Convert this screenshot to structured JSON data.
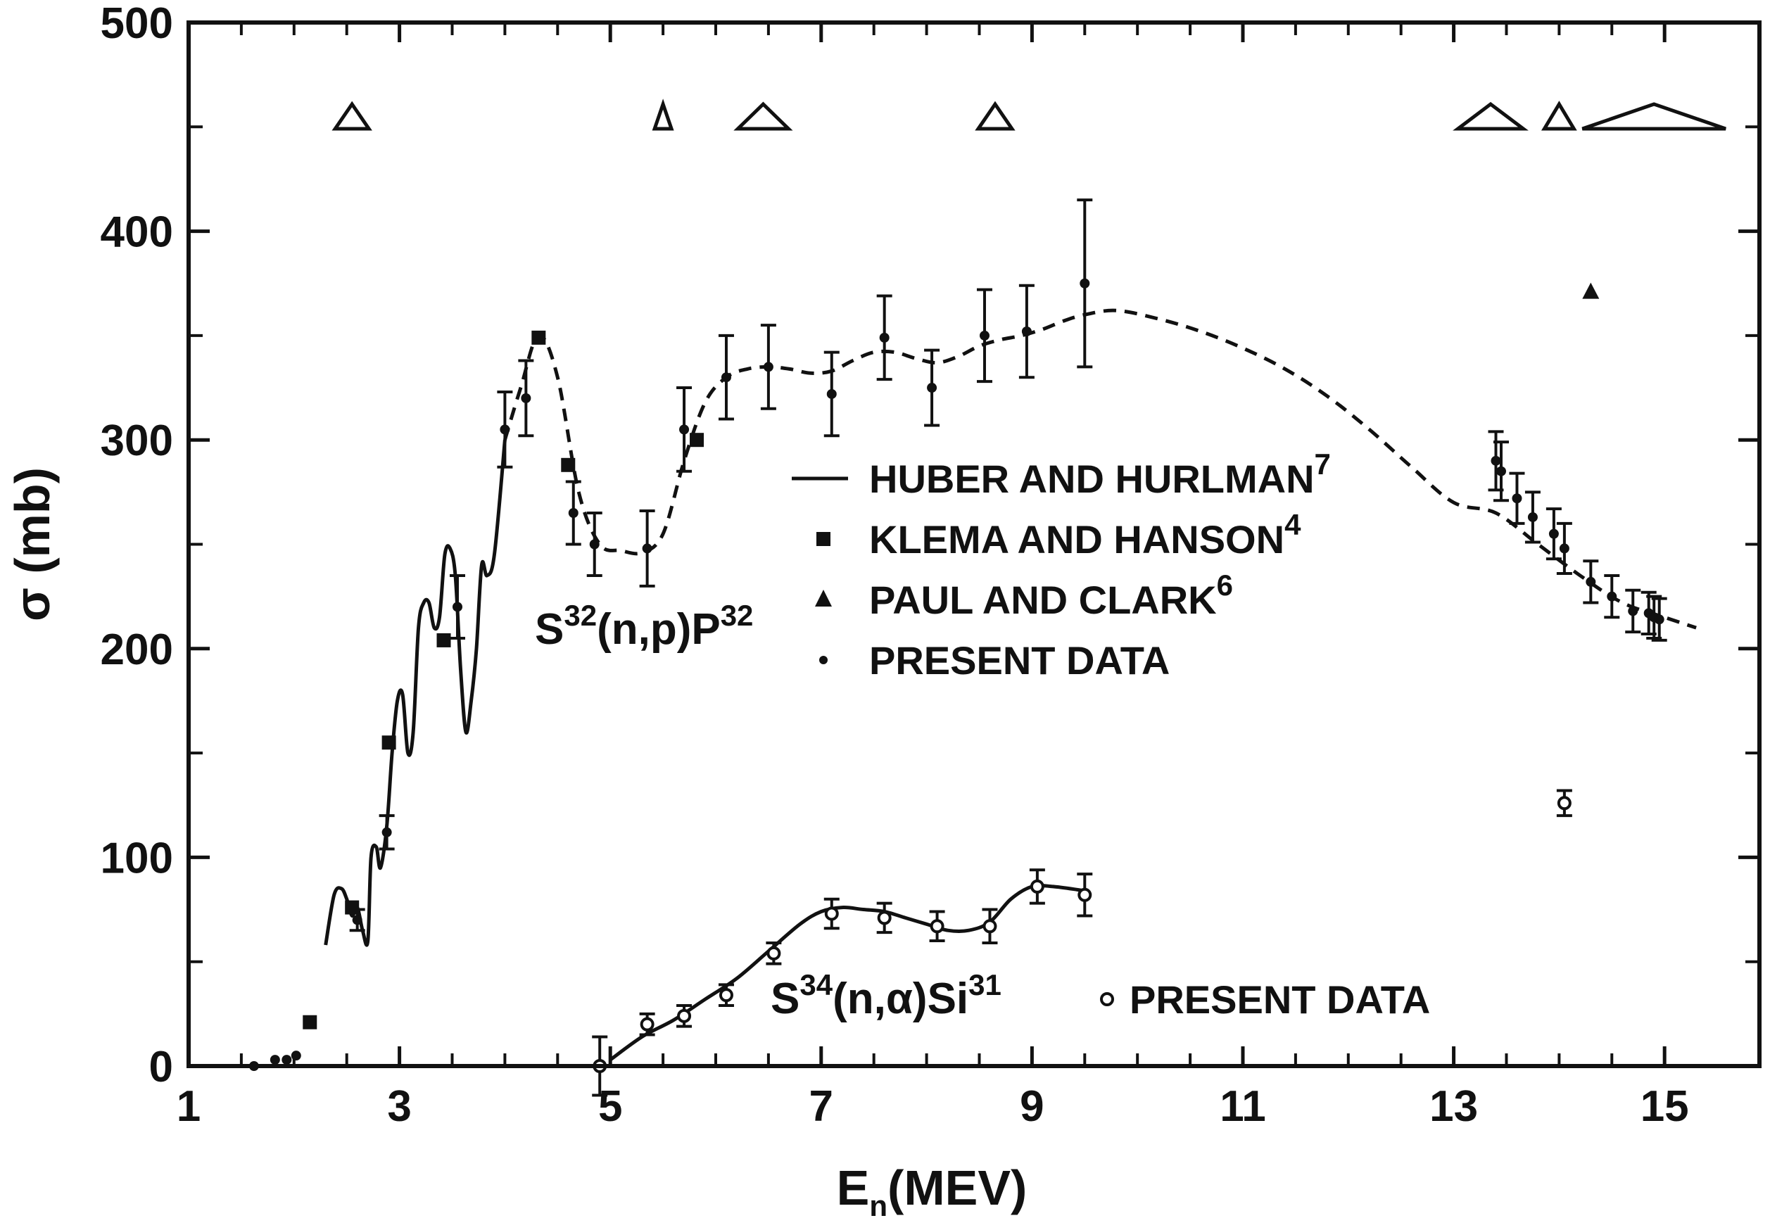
{
  "chart_data": {
    "type": "scatter",
    "xlabel": {
      "main": "E",
      "sub": "n",
      "rest": "(MEV)"
    },
    "ylabel": "σ (mb)",
    "xlim": [
      1,
      15.9
    ],
    "ylim": [
      0,
      500
    ],
    "x_ticks": [
      {
        "value": 1,
        "label": "1"
      },
      {
        "value": 3,
        "label": "3"
      },
      {
        "value": 5,
        "label": "5"
      },
      {
        "value": 7,
        "label": "7"
      },
      {
        "value": 9,
        "label": "9"
      },
      {
        "value": 11,
        "label": "11"
      },
      {
        "value": 13,
        "label": "13"
      },
      {
        "value": 15,
        "label": "15"
      }
    ],
    "y_ticks": [
      {
        "value": 0,
        "label": "0"
      },
      {
        "value": 100,
        "label": "100"
      },
      {
        "value": 200,
        "label": "200"
      },
      {
        "value": 300,
        "label": "300"
      },
      {
        "value": 400,
        "label": "400"
      },
      {
        "value": 500,
        "label": "500"
      }
    ],
    "legend": [
      {
        "marker": "line",
        "text": "HUBER AND HURLMAN",
        "sup": "7"
      },
      {
        "marker": "square",
        "text": "KLEMA AND HANSON",
        "sup": "4"
      },
      {
        "marker": "triangle",
        "text": "PAUL AND CLARK",
        "sup": "6"
      },
      {
        "marker": "dot",
        "text": "PRESENT DATA",
        "sup": ""
      }
    ],
    "reaction_labels": [
      {
        "id": "np",
        "parts": [
          "S",
          "32",
          "(n,p)P",
          "32"
        ]
      },
      {
        "id": "na",
        "parts": [
          "S",
          "34",
          "(n,α)Si",
          "31"
        ],
        "legend_text": "PRESENT DATA"
      }
    ],
    "series": [
      {
        "name": "HUBER AND HURLMAN",
        "marker": "line",
        "x": [
          2.3,
          2.38,
          2.45,
          2.5,
          2.55,
          2.6,
          2.65,
          2.7,
          2.73,
          2.78,
          2.82,
          2.88,
          2.93,
          2.98,
          3.03,
          3.08,
          3.13,
          3.18,
          3.23,
          3.28,
          3.33,
          3.38,
          3.43,
          3.48,
          3.53,
          3.58,
          3.63,
          3.68,
          3.73,
          3.78,
          3.83,
          3.9,
          4.0
        ],
        "y": [
          58,
          82,
          85,
          80,
          72,
          76,
          65,
          60,
          100,
          105,
          95,
          115,
          150,
          175,
          178,
          150,
          160,
          210,
          222,
          222,
          210,
          215,
          245,
          248,
          235,
          190,
          160,
          175,
          200,
          240,
          235,
          245,
          300
        ]
      },
      {
        "name": "S32(n,p)P32 curve",
        "marker": "dashed",
        "x": [
          4.0,
          4.15,
          4.32,
          4.5,
          4.7,
          4.9,
          5.1,
          5.3,
          5.5,
          5.7,
          5.9,
          6.1,
          6.3,
          6.5,
          6.7,
          6.9,
          7.1,
          7.3,
          7.5,
          7.7,
          7.9,
          8.1,
          8.3,
          8.5,
          8.7,
          8.9,
          9.1,
          9.3,
          9.5,
          9.8,
          10.2,
          10.6,
          11.0,
          11.4,
          11.8,
          12.2,
          12.6,
          13.0,
          13.4,
          13.8,
          14.2,
          14.6,
          15.0,
          15.3
        ],
        "y": [
          300,
          325,
          350,
          330,
          275,
          250,
          247,
          246,
          255,
          290,
          318,
          330,
          334,
          335,
          334,
          332,
          333,
          338,
          342,
          342,
          339,
          337,
          340,
          345,
          348,
          350,
          353,
          357,
          360,
          362,
          358,
          352,
          344,
          334,
          321,
          305,
          287,
          270,
          265,
          250,
          235,
          222,
          215,
          210
        ]
      },
      {
        "name": "KLEMA AND HANSON",
        "marker": "square",
        "x": [
          2.15,
          2.55,
          2.9,
          3.42,
          4.32,
          4.6,
          5.82
        ],
        "y": [
          21,
          76,
          155,
          204,
          349,
          288,
          300
        ]
      },
      {
        "name": "PAUL AND CLARK",
        "marker": "triangle",
        "x": [
          14.3
        ],
        "y": [
          371
        ]
      },
      {
        "name": "PRESENT DATA",
        "marker": "dot",
        "x": [
          1.62,
          1.82,
          1.93,
          2.02,
          2.6,
          2.88,
          3.55,
          4.0,
          4.2,
          4.65,
          4.85,
          5.35,
          5.7,
          6.1,
          6.5,
          7.1,
          7.6,
          8.05,
          8.55,
          8.95,
          9.5,
          13.4,
          13.45,
          13.6,
          13.75,
          13.95,
          14.05,
          14.3,
          14.5,
          14.7,
          14.85,
          14.9,
          14.95
        ],
        "y": [
          0,
          3,
          3,
          5,
          70,
          112,
          220,
          305,
          320,
          265,
          250,
          248,
          305,
          330,
          335,
          322,
          349,
          325,
          350,
          352,
          375,
          290,
          285,
          272,
          263,
          255,
          248,
          232,
          225,
          218,
          217,
          215,
          214
        ],
        "err": [
          0,
          0,
          0,
          0,
          5,
          8,
          15,
          18,
          18,
          15,
          15,
          18,
          20,
          20,
          20,
          20,
          20,
          18,
          22,
          22,
          40,
          14,
          14,
          12,
          12,
          12,
          12,
          10,
          10,
          10,
          10,
          10,
          10
        ]
      },
      {
        "name": "S34(n,α)Si31 curve",
        "marker": "line",
        "x": [
          5.0,
          5.3,
          5.6,
          5.9,
          6.2,
          6.5,
          6.8,
          7.0,
          7.2,
          7.4,
          7.6,
          7.8,
          8.0,
          8.2,
          8.4,
          8.6,
          8.8,
          9.0,
          9.2,
          9.5
        ],
        "y": [
          3,
          14,
          22,
          32,
          42,
          55,
          68,
          74,
          76,
          75,
          74,
          71,
          68,
          65,
          65,
          69,
          80,
          86,
          86,
          84
        ]
      },
      {
        "name": "PRESENT DATA",
        "marker": "circle",
        "x": [
          4.9,
          5.35,
          5.7,
          6.1,
          6.55,
          7.1,
          7.6,
          8.1,
          8.6,
          9.05,
          9.5,
          14.05
        ],
        "y": [
          0,
          20,
          24,
          34,
          54,
          73,
          71,
          67,
          67,
          86,
          82,
          126
        ],
        "err": [
          14,
          5,
          5,
          5,
          5,
          7,
          7,
          7,
          8,
          8,
          10,
          6
        ]
      }
    ],
    "resolution_triangles": [
      {
        "x": 2.55,
        "width": 0.32
      },
      {
        "x": 5.5,
        "width": 0.16
      },
      {
        "x": 6.45,
        "width": 0.48
      },
      {
        "x": 8.65,
        "width": 0.32
      },
      {
        "x": 13.35,
        "width": 0.62
      },
      {
        "x": 14.0,
        "width": 0.28
      },
      {
        "x": 14.9,
        "width": 1.36
      }
    ]
  }
}
